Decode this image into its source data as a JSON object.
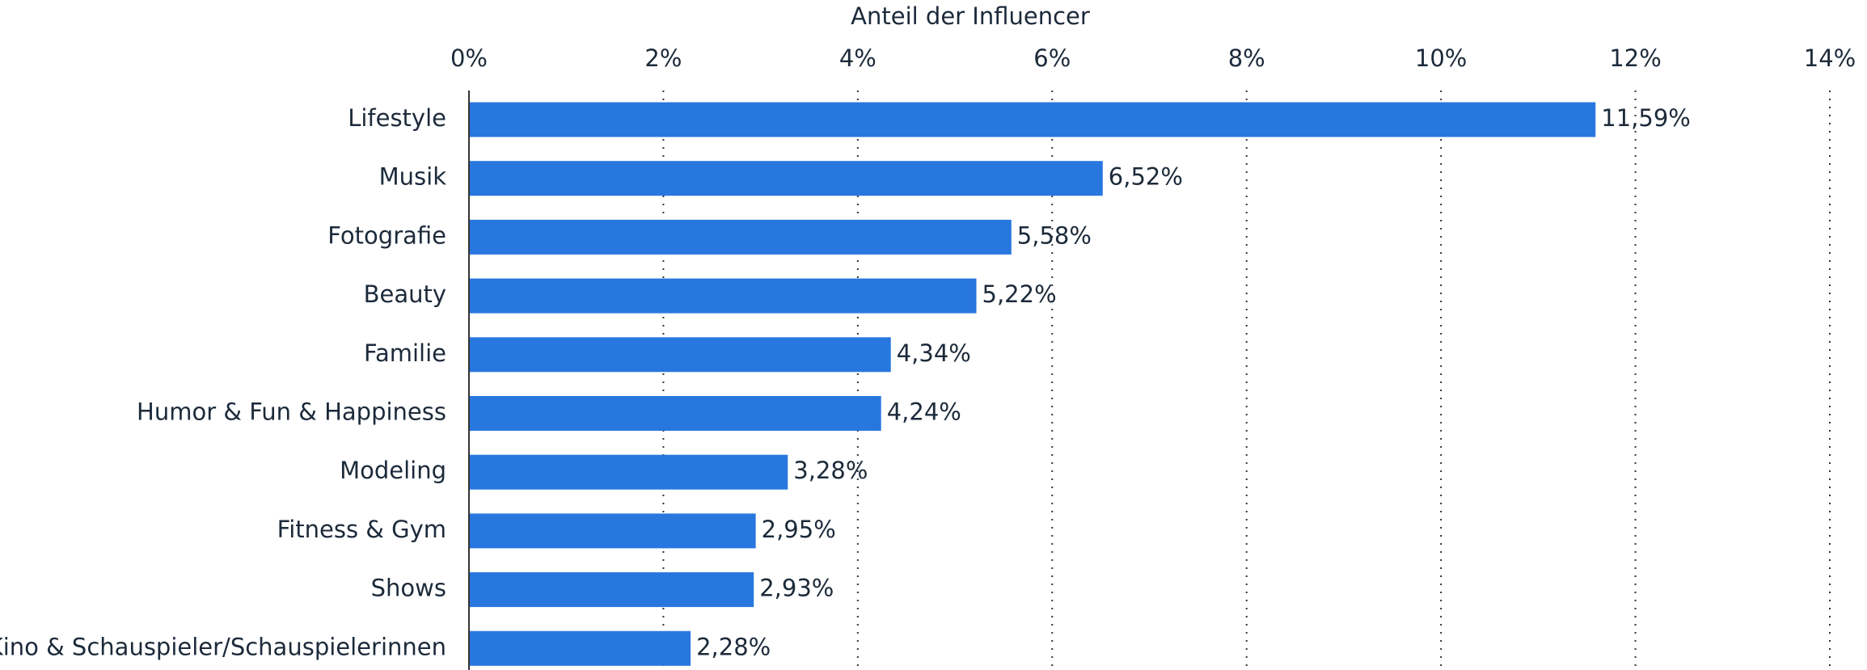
{
  "chart_data": {
    "type": "bar",
    "orientation": "horizontal",
    "x_label": "Anteil der Influencer",
    "categories": [
      "Lifestyle",
      "Musik",
      "Fotografie",
      "Beauty",
      "Familie",
      "Humor & Fun & Happiness",
      "Modeling",
      "Fitness & Gym",
      "Shows",
      "Kino & Schauspieler/Schauspielerinnen"
    ],
    "values": [
      11.59,
      6.52,
      5.58,
      5.22,
      4.34,
      4.24,
      3.28,
      2.95,
      2.93,
      2.28
    ],
    "value_labels": [
      "11,59%",
      "6,52%",
      "5,58%",
      "5,22%",
      "4,34%",
      "4,24%",
      "3,28%",
      "2,95%",
      "2,93%",
      "2,28%"
    ],
    "color": "#2877df",
    "xlim": [
      0,
      14
    ],
    "xticks": [
      {
        "value": 0,
        "label": "0%"
      },
      {
        "value": 2,
        "label": "2%"
      },
      {
        "value": 4,
        "label": "4%"
      },
      {
        "value": 6,
        "label": "6%"
      },
      {
        "value": 8,
        "label": "8%"
      },
      {
        "value": 10,
        "label": "10%"
      },
      {
        "value": 12,
        "label": "12%"
      },
      {
        "value": 14,
        "label": "14%"
      }
    ],
    "grid": true
  }
}
